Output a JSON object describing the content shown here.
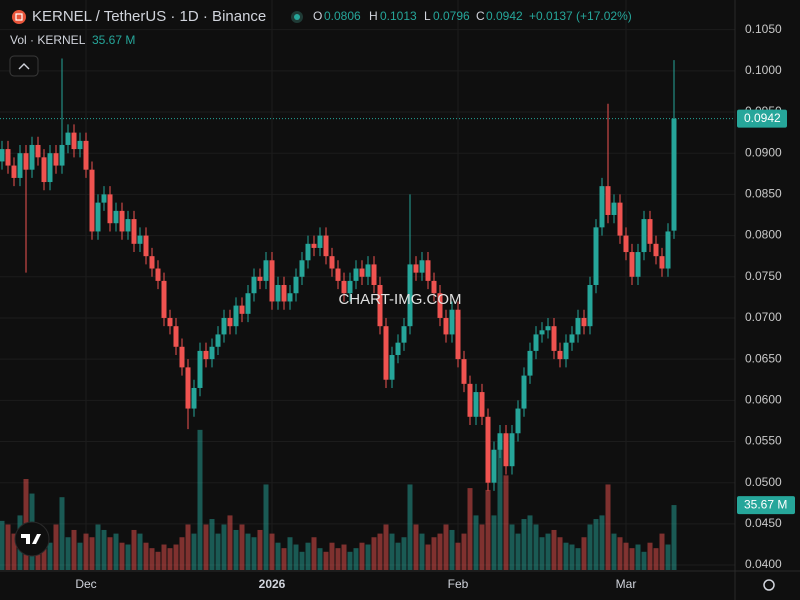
{
  "chart_data": {
    "type": "candlestick",
    "title": "KERNEL / TetherUS · 1D · Binance",
    "legend_labels": {
      "open": "O",
      "high": "H",
      "low": "L",
      "close": "C"
    },
    "change_label": "+0.0137 (+17.02%)",
    "volume_title": "Vol · KERNEL",
    "last_volume_label": "35.67 M",
    "watermark": "CHART-IMG.COM",
    "up_color": "#26a69a",
    "down_color": "#ef5350",
    "grid": true,
    "categories": [
      null,
      null,
      null,
      null,
      null,
      null,
      null,
      null,
      null,
      null,
      null,
      null,
      null,
      null,
      "Dec",
      null,
      null,
      null,
      null,
      null,
      null,
      null,
      null,
      null,
      null,
      null,
      null,
      null,
      null,
      null,
      null,
      null,
      null,
      null,
      null,
      null,
      null,
      null,
      null,
      null,
      null,
      null,
      null,
      null,
      null,
      "2026",
      null,
      null,
      null,
      null,
      null,
      null,
      null,
      null,
      null,
      null,
      null,
      null,
      null,
      null,
      null,
      null,
      null,
      null,
      null,
      null,
      null,
      null,
      null,
      null,
      null,
      null,
      null,
      null,
      null,
      null,
      "Feb",
      null,
      null,
      null,
      null,
      null,
      null,
      null,
      null,
      null,
      null,
      null,
      null,
      null,
      null,
      null,
      null,
      null,
      null,
      null,
      null,
      null,
      null,
      null,
      null,
      null,
      null,
      null,
      "Mar",
      null,
      null,
      null,
      null,
      null,
      null,
      null,
      null
    ],
    "open": [
      0.089,
      0.0905,
      0.0885,
      0.087,
      0.09,
      0.088,
      0.091,
      0.0895,
      0.0865,
      0.09,
      0.0885,
      0.091,
      0.0925,
      0.0905,
      0.0915,
      0.088,
      0.0805,
      0.084,
      0.085,
      0.0815,
      0.083,
      0.0805,
      0.082,
      0.079,
      0.08,
      0.0775,
      0.076,
      0.0745,
      0.07,
      0.069,
      0.0665,
      0.064,
      0.059,
      0.0615,
      0.066,
      0.065,
      0.0665,
      0.068,
      0.07,
      0.069,
      0.0715,
      0.0705,
      0.073,
      0.075,
      0.0745,
      0.077,
      0.072,
      0.074,
      0.072,
      0.073,
      0.075,
      0.077,
      0.079,
      0.0785,
      0.08,
      0.0775,
      0.076,
      0.0745,
      0.073,
      0.0745,
      0.076,
      0.075,
      0.0765,
      0.074,
      0.069,
      0.0625,
      0.0655,
      0.067,
      0.069,
      0.0765,
      0.0755,
      0.077,
      0.0745,
      0.073,
      0.07,
      0.068,
      0.071,
      0.065,
      0.062,
      0.058,
      0.061,
      0.058,
      0.05,
      0.054,
      0.056,
      0.052,
      0.056,
      0.059,
      0.063,
      0.066,
      0.068,
      0.0685,
      0.069,
      0.066,
      0.065,
      0.067,
      0.068,
      0.07,
      0.069,
      0.074,
      0.081,
      0.086,
      0.0825,
      0.084,
      0.08,
      0.078,
      0.075,
      0.078,
      0.082,
      0.079,
      0.0775,
      0.076,
      0.0806
    ],
    "high": [
      0.0915,
      0.0915,
      0.0895,
      0.091,
      0.091,
      0.092,
      0.092,
      0.0905,
      0.091,
      0.091,
      0.1015,
      0.0935,
      0.0935,
      0.0925,
      0.0925,
      0.089,
      0.085,
      0.086,
      0.086,
      0.084,
      0.084,
      0.083,
      0.083,
      0.081,
      0.081,
      0.0785,
      0.077,
      0.0755,
      0.071,
      0.07,
      0.0675,
      0.065,
      0.0625,
      0.067,
      0.067,
      0.0675,
      0.069,
      0.071,
      0.071,
      0.0725,
      0.0725,
      0.074,
      0.076,
      0.076,
      0.078,
      0.078,
      0.075,
      0.075,
      0.074,
      0.076,
      0.078,
      0.08,
      0.08,
      0.081,
      0.081,
      0.0785,
      0.077,
      0.0755,
      0.0755,
      0.077,
      0.077,
      0.0775,
      0.0775,
      0.075,
      0.07,
      0.0665,
      0.068,
      0.07,
      0.085,
      0.0775,
      0.078,
      0.078,
      0.0755,
      0.074,
      0.071,
      0.072,
      0.072,
      0.066,
      0.063,
      0.062,
      0.062,
      0.059,
      0.055,
      0.057,
      0.057,
      0.057,
      0.06,
      0.064,
      0.067,
      0.069,
      0.0695,
      0.07,
      0.07,
      0.067,
      0.068,
      0.069,
      0.071,
      0.071,
      0.075,
      0.082,
      0.087,
      0.096,
      0.085,
      0.085,
      0.081,
      0.079,
      0.079,
      0.083,
      0.083,
      0.08,
      0.0785,
      0.0815,
      0.1013
    ],
    "low": [
      0.088,
      0.0875,
      0.086,
      0.086,
      0.0755,
      0.087,
      0.0885,
      0.0855,
      0.0855,
      0.0875,
      0.0875,
      0.09,
      0.0895,
      0.0895,
      0.087,
      0.0795,
      0.0795,
      0.083,
      0.0805,
      0.0805,
      0.0795,
      0.0795,
      0.078,
      0.078,
      0.0765,
      0.075,
      0.0735,
      0.069,
      0.068,
      0.0655,
      0.063,
      0.0565,
      0.058,
      0.0605,
      0.064,
      0.064,
      0.0655,
      0.067,
      0.068,
      0.068,
      0.0695,
      0.0695,
      0.072,
      0.0735,
      0.0735,
      0.071,
      0.071,
      0.071,
      0.071,
      0.072,
      0.074,
      0.076,
      0.0775,
      0.0775,
      0.0765,
      0.075,
      0.0735,
      0.072,
      0.072,
      0.0735,
      0.074,
      0.074,
      0.073,
      0.068,
      0.0615,
      0.0615,
      0.0645,
      0.066,
      0.068,
      0.0745,
      0.0745,
      0.0735,
      0.072,
      0.069,
      0.067,
      0.067,
      0.064,
      0.061,
      0.057,
      0.057,
      0.057,
      0.049,
      0.049,
      0.053,
      0.051,
      0.051,
      0.055,
      0.058,
      0.062,
      0.065,
      0.067,
      0.0675,
      0.065,
      0.064,
      0.064,
      0.066,
      0.067,
      0.068,
      0.068,
      0.073,
      0.08,
      0.0815,
      0.0815,
      0.079,
      0.077,
      0.074,
      0.074,
      0.077,
      0.078,
      0.0765,
      0.075,
      0.075,
      0.0796
    ],
    "close": [
      0.0905,
      0.0885,
      0.087,
      0.09,
      0.088,
      0.091,
      0.0895,
      0.0865,
      0.09,
      0.0885,
      0.091,
      0.0925,
      0.0905,
      0.0915,
      0.088,
      0.0805,
      0.084,
      0.085,
      0.0815,
      0.083,
      0.0805,
      0.082,
      0.079,
      0.08,
      0.0775,
      0.076,
      0.0745,
      0.07,
      0.069,
      0.0665,
      0.064,
      0.059,
      0.0615,
      0.066,
      0.065,
      0.0665,
      0.068,
      0.07,
      0.069,
      0.0715,
      0.0705,
      0.073,
      0.075,
      0.0745,
      0.077,
      0.072,
      0.074,
      0.072,
      0.073,
      0.075,
      0.077,
      0.079,
      0.0785,
      0.08,
      0.0775,
      0.076,
      0.0745,
      0.073,
      0.0745,
      0.076,
      0.075,
      0.0765,
      0.074,
      0.069,
      0.0625,
      0.0655,
      0.067,
      0.069,
      0.0765,
      0.0755,
      0.077,
      0.0745,
      0.073,
      0.07,
      0.068,
      0.071,
      0.065,
      0.062,
      0.058,
      0.061,
      0.058,
      0.05,
      0.054,
      0.056,
      0.052,
      0.056,
      0.059,
      0.063,
      0.066,
      0.068,
      0.0685,
      0.069,
      0.066,
      0.065,
      0.067,
      0.068,
      0.07,
      0.069,
      0.074,
      0.081,
      0.086,
      0.0825,
      0.084,
      0.08,
      0.078,
      0.075,
      0.078,
      0.082,
      0.079,
      0.0775,
      0.076,
      0.0805,
      0.0942
    ],
    "volume": [
      27,
      25,
      20,
      30,
      50,
      42,
      22,
      20,
      15,
      25,
      40,
      18,
      22,
      15,
      20,
      18,
      25,
      22,
      18,
      20,
      15,
      14,
      22,
      20,
      15,
      12,
      10,
      14,
      12,
      14,
      18,
      25,
      20,
      77,
      25,
      28,
      20,
      25,
      30,
      22,
      25,
      20,
      18,
      22,
      47,
      20,
      15,
      12,
      18,
      14,
      10,
      15,
      18,
      12,
      10,
      15,
      12,
      14,
      10,
      12,
      15,
      14,
      18,
      20,
      25,
      20,
      15,
      18,
      47,
      25,
      20,
      14,
      18,
      20,
      25,
      22,
      15,
      20,
      45,
      30,
      25,
      44,
      30,
      70,
      52,
      25,
      20,
      28,
      30,
      25,
      18,
      20,
      22,
      18,
      15,
      14,
      12,
      18,
      25,
      28,
      30,
      47,
      20,
      18,
      15,
      12,
      14,
      10,
      15,
      12,
      20,
      14,
      35.67
    ],
    "ylim": [
      0.0394,
      0.1086
    ],
    "yticks": [
      {
        "value": 0.04,
        "label": "0.0400"
      },
      {
        "value": 0.045,
        "label": "0.0450"
      },
      {
        "value": 0.05,
        "label": "0.0500"
      },
      {
        "value": 0.055,
        "label": "0.0550"
      },
      {
        "value": 0.06,
        "label": "0.0600"
      },
      {
        "value": 0.065,
        "label": "0.0650"
      },
      {
        "value": 0.07,
        "label": "0.0700"
      },
      {
        "value": 0.075,
        "label": "0.0750"
      },
      {
        "value": 0.08,
        "label": "0.0800"
      },
      {
        "value": 0.085,
        "label": "0.0850"
      },
      {
        "value": 0.09,
        "label": "0.0900"
      },
      {
        "value": 0.095,
        "label": "0.0950"
      },
      {
        "value": 0.1,
        "label": "0.1000"
      },
      {
        "value": 0.105,
        "label": "0.1050"
      }
    ]
  }
}
